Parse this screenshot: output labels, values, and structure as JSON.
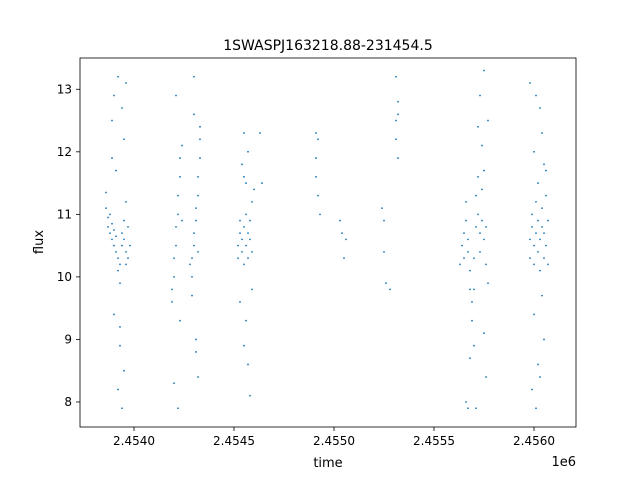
{
  "chart_data": {
    "type": "scatter",
    "title": "1SWASPJ163218.88-231454.5",
    "xlabel": "time",
    "ylabel": "flux",
    "x_offset_label": "1e6",
    "xlim": [
      2.45373,
      2.45621
    ],
    "ylim": [
      7.6,
      13.5
    ],
    "x_ticks": [
      2.454,
      2.4545,
      2.455,
      2.4555,
      2.456
    ],
    "x_tick_labels": [
      "2.4540",
      "2.4545",
      "2.4550",
      "2.4555",
      "2.4560"
    ],
    "y_ticks": [
      8,
      9,
      10,
      11,
      12,
      13
    ],
    "y_tick_labels": [
      "8",
      "9",
      "10",
      "11",
      "12",
      "13"
    ],
    "grid": false,
    "marker_color": "#1f77b4",
    "series": [
      {
        "name": "",
        "points": [
          [
            2.45386,
            11.35
          ],
          [
            2.45386,
            11.1
          ],
          [
            2.45387,
            10.95
          ],
          [
            2.45387,
            10.8
          ],
          [
            2.45388,
            10.7
          ],
          [
            2.45388,
            11.0
          ],
          [
            2.45389,
            10.85
          ],
          [
            2.45389,
            10.6
          ],
          [
            2.4539,
            10.75
          ],
          [
            2.4539,
            10.5
          ],
          [
            2.45391,
            10.4
          ],
          [
            2.45391,
            10.65
          ],
          [
            2.45392,
            10.3
          ],
          [
            2.45392,
            10.1
          ],
          [
            2.45393,
            9.9
          ],
          [
            2.45393,
            10.2
          ],
          [
            2.45394,
            10.5
          ],
          [
            2.45394,
            10.7
          ],
          [
            2.45395,
            10.9
          ],
          [
            2.45395,
            10.6
          ],
          [
            2.45396,
            10.4
          ],
          [
            2.45396,
            10.2
          ],
          [
            2.45389,
            12.5
          ],
          [
            2.4539,
            12.9
          ],
          [
            2.45392,
            13.2
          ],
          [
            2.45394,
            12.7
          ],
          [
            2.45396,
            13.1
          ],
          [
            2.45395,
            12.2
          ],
          [
            2.45393,
            9.2
          ],
          [
            2.45392,
            8.2
          ],
          [
            2.45394,
            7.9
          ],
          [
            2.45395,
            8.5
          ],
          [
            2.4539,
            9.4
          ],
          [
            2.45391,
            11.7
          ],
          [
            2.45396,
            11.2
          ],
          [
            2.45397,
            10.8
          ],
          [
            2.45397,
            10.3
          ],
          [
            2.45398,
            10.5
          ],
          [
            2.45393,
            8.9
          ],
          [
            2.45389,
            11.9
          ],
          [
            2.45419,
            9.6
          ],
          [
            2.45419,
            9.8
          ],
          [
            2.4542,
            10.0
          ],
          [
            2.4542,
            10.3
          ],
          [
            2.45421,
            10.5
          ],
          [
            2.45421,
            10.8
          ],
          [
            2.45422,
            11.0
          ],
          [
            2.45422,
            11.3
          ],
          [
            2.45423,
            11.6
          ],
          [
            2.45423,
            11.9
          ],
          [
            2.45424,
            12.1
          ],
          [
            2.45424,
            10.9
          ],
          [
            2.45421,
            12.9
          ],
          [
            2.4542,
            8.3
          ],
          [
            2.45422,
            7.9
          ],
          [
            2.45423,
            9.3
          ],
          [
            2.45429,
            10.0
          ],
          [
            2.45429,
            10.3
          ],
          [
            2.4543,
            10.5
          ],
          [
            2.4543,
            10.7
          ],
          [
            2.45431,
            10.9
          ],
          [
            2.45431,
            11.1
          ],
          [
            2.45432,
            11.3
          ],
          [
            2.45432,
            11.6
          ],
          [
            2.45433,
            11.9
          ],
          [
            2.45433,
            12.2
          ],
          [
            2.4543,
            13.2
          ],
          [
            2.45431,
            9.0
          ],
          [
            2.45432,
            8.4
          ],
          [
            2.45429,
            9.7
          ],
          [
            2.4543,
            12.6
          ],
          [
            2.45433,
            12.4
          ],
          [
            2.45431,
            8.8
          ],
          [
            2.45428,
            10.2
          ],
          [
            2.45432,
            10.4
          ],
          [
            2.45452,
            10.3
          ],
          [
            2.45452,
            10.5
          ],
          [
            2.45453,
            10.7
          ],
          [
            2.45453,
            10.9
          ],
          [
            2.45454,
            10.6
          ],
          [
            2.45454,
            10.4
          ],
          [
            2.45455,
            10.2
          ],
          [
            2.45455,
            10.8
          ],
          [
            2.45456,
            11.0
          ],
          [
            2.45456,
            10.5
          ],
          [
            2.45457,
            10.3
          ],
          [
            2.45457,
            10.7
          ],
          [
            2.45458,
            10.9
          ],
          [
            2.45458,
            10.6
          ],
          [
            2.45459,
            11.2
          ],
          [
            2.45459,
            10.4
          ],
          [
            2.45454,
            11.8
          ],
          [
            2.45455,
            12.3
          ],
          [
            2.45456,
            9.3
          ],
          [
            2.45457,
            8.6
          ],
          [
            2.45458,
            8.1
          ],
          [
            2.45455,
            8.9
          ],
          [
            2.4546,
            11.4
          ],
          [
            2.45463,
            12.3
          ],
          [
            2.45464,
            11.5
          ],
          [
            2.45456,
            11.5
          ],
          [
            2.45453,
            9.6
          ],
          [
            2.45459,
            9.8
          ],
          [
            2.45455,
            11.6
          ],
          [
            2.45457,
            12.0
          ],
          [
            2.45491,
            11.6
          ],
          [
            2.45491,
            11.9
          ],
          [
            2.45492,
            11.3
          ],
          [
            2.45492,
            12.2
          ],
          [
            2.45493,
            11.0
          ],
          [
            2.45491,
            12.3
          ],
          [
            2.45503,
            10.9
          ],
          [
            2.45504,
            10.7
          ],
          [
            2.45506,
            10.6
          ],
          [
            2.45505,
            10.3
          ],
          [
            2.45524,
            11.1
          ],
          [
            2.45525,
            10.9
          ],
          [
            2.45525,
            10.4
          ],
          [
            2.45526,
            9.9
          ],
          [
            2.45528,
            9.8
          ],
          [
            2.45531,
            12.5
          ],
          [
            2.45531,
            12.2
          ],
          [
            2.45532,
            12.8
          ],
          [
            2.45532,
            11.9
          ],
          [
            2.45531,
            13.2
          ],
          [
            2.45532,
            12.6
          ],
          [
            2.45563,
            10.2
          ],
          [
            2.45564,
            10.5
          ],
          [
            2.45565,
            10.3
          ],
          [
            2.45565,
            10.7
          ],
          [
            2.45566,
            10.9
          ],
          [
            2.45566,
            11.2
          ],
          [
            2.45567,
            10.4
          ],
          [
            2.45567,
            10.6
          ],
          [
            2.45568,
            10.1
          ],
          [
            2.45568,
            9.8
          ],
          [
            2.45569,
            9.6
          ],
          [
            2.45569,
            9.3
          ],
          [
            2.4557,
            9.8
          ],
          [
            2.4557,
            10.3
          ],
          [
            2.45571,
            10.8
          ],
          [
            2.45571,
            11.3
          ],
          [
            2.45572,
            11.6
          ],
          [
            2.45572,
            11.0
          ],
          [
            2.45573,
            10.7
          ],
          [
            2.45573,
            10.4
          ],
          [
            2.45574,
            10.9
          ],
          [
            2.45574,
            11.4
          ],
          [
            2.45575,
            11.7
          ],
          [
            2.45575,
            10.6
          ],
          [
            2.45576,
            10.8
          ],
          [
            2.45576,
            10.2
          ],
          [
            2.45577,
            9.9
          ],
          [
            2.45568,
            8.7
          ],
          [
            2.4557,
            8.9
          ],
          [
            2.45572,
            12.4
          ],
          [
            2.45573,
            12.9
          ],
          [
            2.45575,
            13.3
          ],
          [
            2.45566,
            8.0
          ],
          [
            2.45567,
            7.9
          ],
          [
            2.45574,
            12.1
          ],
          [
            2.45575,
            9.1
          ],
          [
            2.45576,
            8.4
          ],
          [
            2.45571,
            7.9
          ],
          [
            2.45577,
            12.5
          ],
          [
            2.45598,
            10.3
          ],
          [
            2.45598,
            10.6
          ],
          [
            2.45599,
            10.8
          ],
          [
            2.45599,
            11.0
          ],
          [
            2.456,
            10.5
          ],
          [
            2.456,
            10.2
          ],
          [
            2.45601,
            10.7
          ],
          [
            2.45601,
            11.2
          ],
          [
            2.45602,
            10.9
          ],
          [
            2.45602,
            10.4
          ],
          [
            2.45603,
            10.1
          ],
          [
            2.45603,
            10.6
          ],
          [
            2.45604,
            11.1
          ],
          [
            2.45604,
            10.8
          ],
          [
            2.45605,
            10.3
          ],
          [
            2.45605,
            10.7
          ],
          [
            2.45606,
            11.3
          ],
          [
            2.45606,
            10.5
          ],
          [
            2.45607,
            10.2
          ],
          [
            2.45607,
            10.9
          ],
          [
            2.45598,
            13.1
          ],
          [
            2.45601,
            12.9
          ],
          [
            2.45603,
            12.7
          ],
          [
            2.45604,
            12.3
          ],
          [
            2.45606,
            11.7
          ],
          [
            2.45599,
            8.2
          ],
          [
            2.45601,
            7.9
          ],
          [
            2.45603,
            8.4
          ],
          [
            2.45605,
            9.0
          ],
          [
            2.456,
            9.4
          ],
          [
            2.45602,
            11.5
          ],
          [
            2.45604,
            9.7
          ],
          [
            2.456,
            12.0
          ],
          [
            2.45605,
            11.8
          ],
          [
            2.45602,
            8.6
          ]
        ]
      }
    ]
  }
}
